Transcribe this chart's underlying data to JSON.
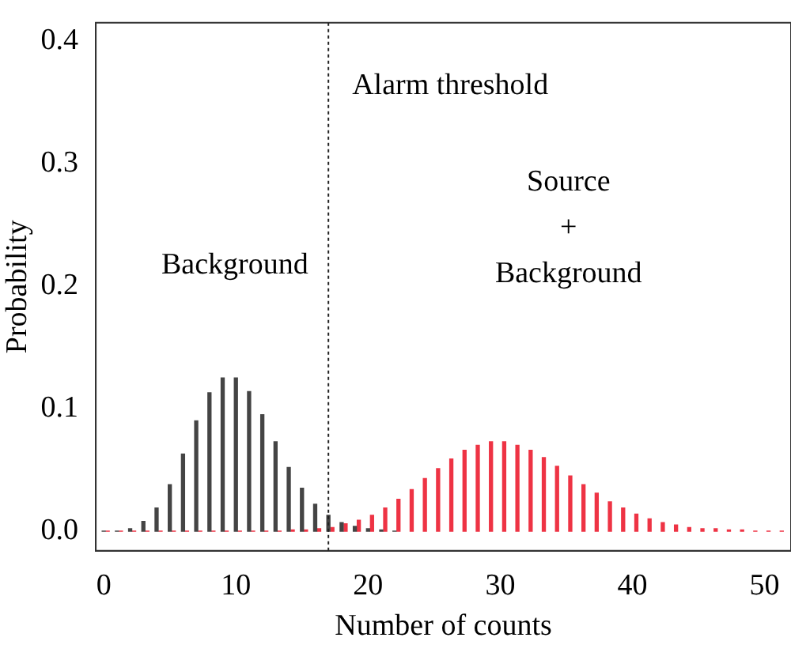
{
  "chart_data": {
    "type": "bar",
    "xlabel": "Number of counts",
    "ylabel": "Probability",
    "xlim": [
      -0.6,
      52
    ],
    "xticks": [
      0,
      10,
      20,
      30,
      40,
      50
    ],
    "ylim": [
      -0.016,
      0.415
    ],
    "yticks": [
      {
        "value": 0,
        "label": "0.0"
      },
      {
        "value": 0.1,
        "label": "0.1"
      },
      {
        "value": 0.2,
        "label": "0.2"
      },
      {
        "value": 0.3,
        "label": "0.3"
      },
      {
        "value": 0.4,
        "label": "0.4"
      }
    ],
    "grid": false,
    "legend": false,
    "annotations": [
      "Background",
      "Source\n+\nBackground"
    ],
    "ref_lines": [
      {
        "axis": "x",
        "value": 17,
        "label": "Alarm threshold",
        "line_style": "dotted",
        "color": "#222222"
      }
    ],
    "series": [
      {
        "color": "#444444",
        "x": [
          0,
          1,
          2,
          3,
          4,
          5,
          6,
          7,
          8,
          9,
          10,
          11,
          12,
          13,
          14,
          15,
          16,
          17,
          18,
          19,
          20,
          21,
          22
        ],
        "values": [
          0.0,
          0.0,
          0.002,
          0.008,
          0.019,
          0.038,
          0.063,
          0.09,
          0.113,
          0.125,
          0.125,
          0.114,
          0.095,
          0.073,
          0.052,
          0.035,
          0.022,
          0.013,
          0.007,
          0.004,
          0.002,
          0.001,
          0.0
        ]
      },
      {
        "color": "#ee3344",
        "x": [
          0.3,
          1.3,
          2.3,
          3.3,
          4.3,
          5.3,
          6.3,
          7.3,
          8.3,
          9.3,
          10.3,
          11.3,
          12.3,
          13.3,
          14.3,
          15.3,
          16.3,
          17.3,
          18.3,
          19.3,
          20.3,
          21.3,
          22.3,
          23.3,
          24.3,
          25.3,
          26.3,
          27.3,
          28.3,
          29.3,
          30.3,
          31.3,
          32.3,
          33.3,
          34.3,
          35.3,
          36.3,
          37.3,
          38.3,
          39.3,
          40.3,
          41.3,
          42.3,
          43.3,
          44.3,
          45.3,
          46.3,
          47.3,
          48.3,
          49.3,
          50.3,
          51.3
        ],
        "values": [
          0,
          0,
          0,
          0,
          0,
          0,
          0,
          0,
          0,
          0,
          0,
          0,
          0.0,
          0.0,
          0.001,
          0.001,
          0.002,
          0.003,
          0.006,
          0.009,
          0.013,
          0.019,
          0.026,
          0.034,
          0.043,
          0.051,
          0.059,
          0.066,
          0.07,
          0.073,
          0.073,
          0.07,
          0.066,
          0.06,
          0.053,
          0.045,
          0.038,
          0.031,
          0.024,
          0.019,
          0.014,
          0.01,
          0.007,
          0.005,
          0.003,
          0.002,
          0.002,
          0.001,
          0.001,
          0.0,
          0.0,
          0.0
        ]
      }
    ]
  }
}
